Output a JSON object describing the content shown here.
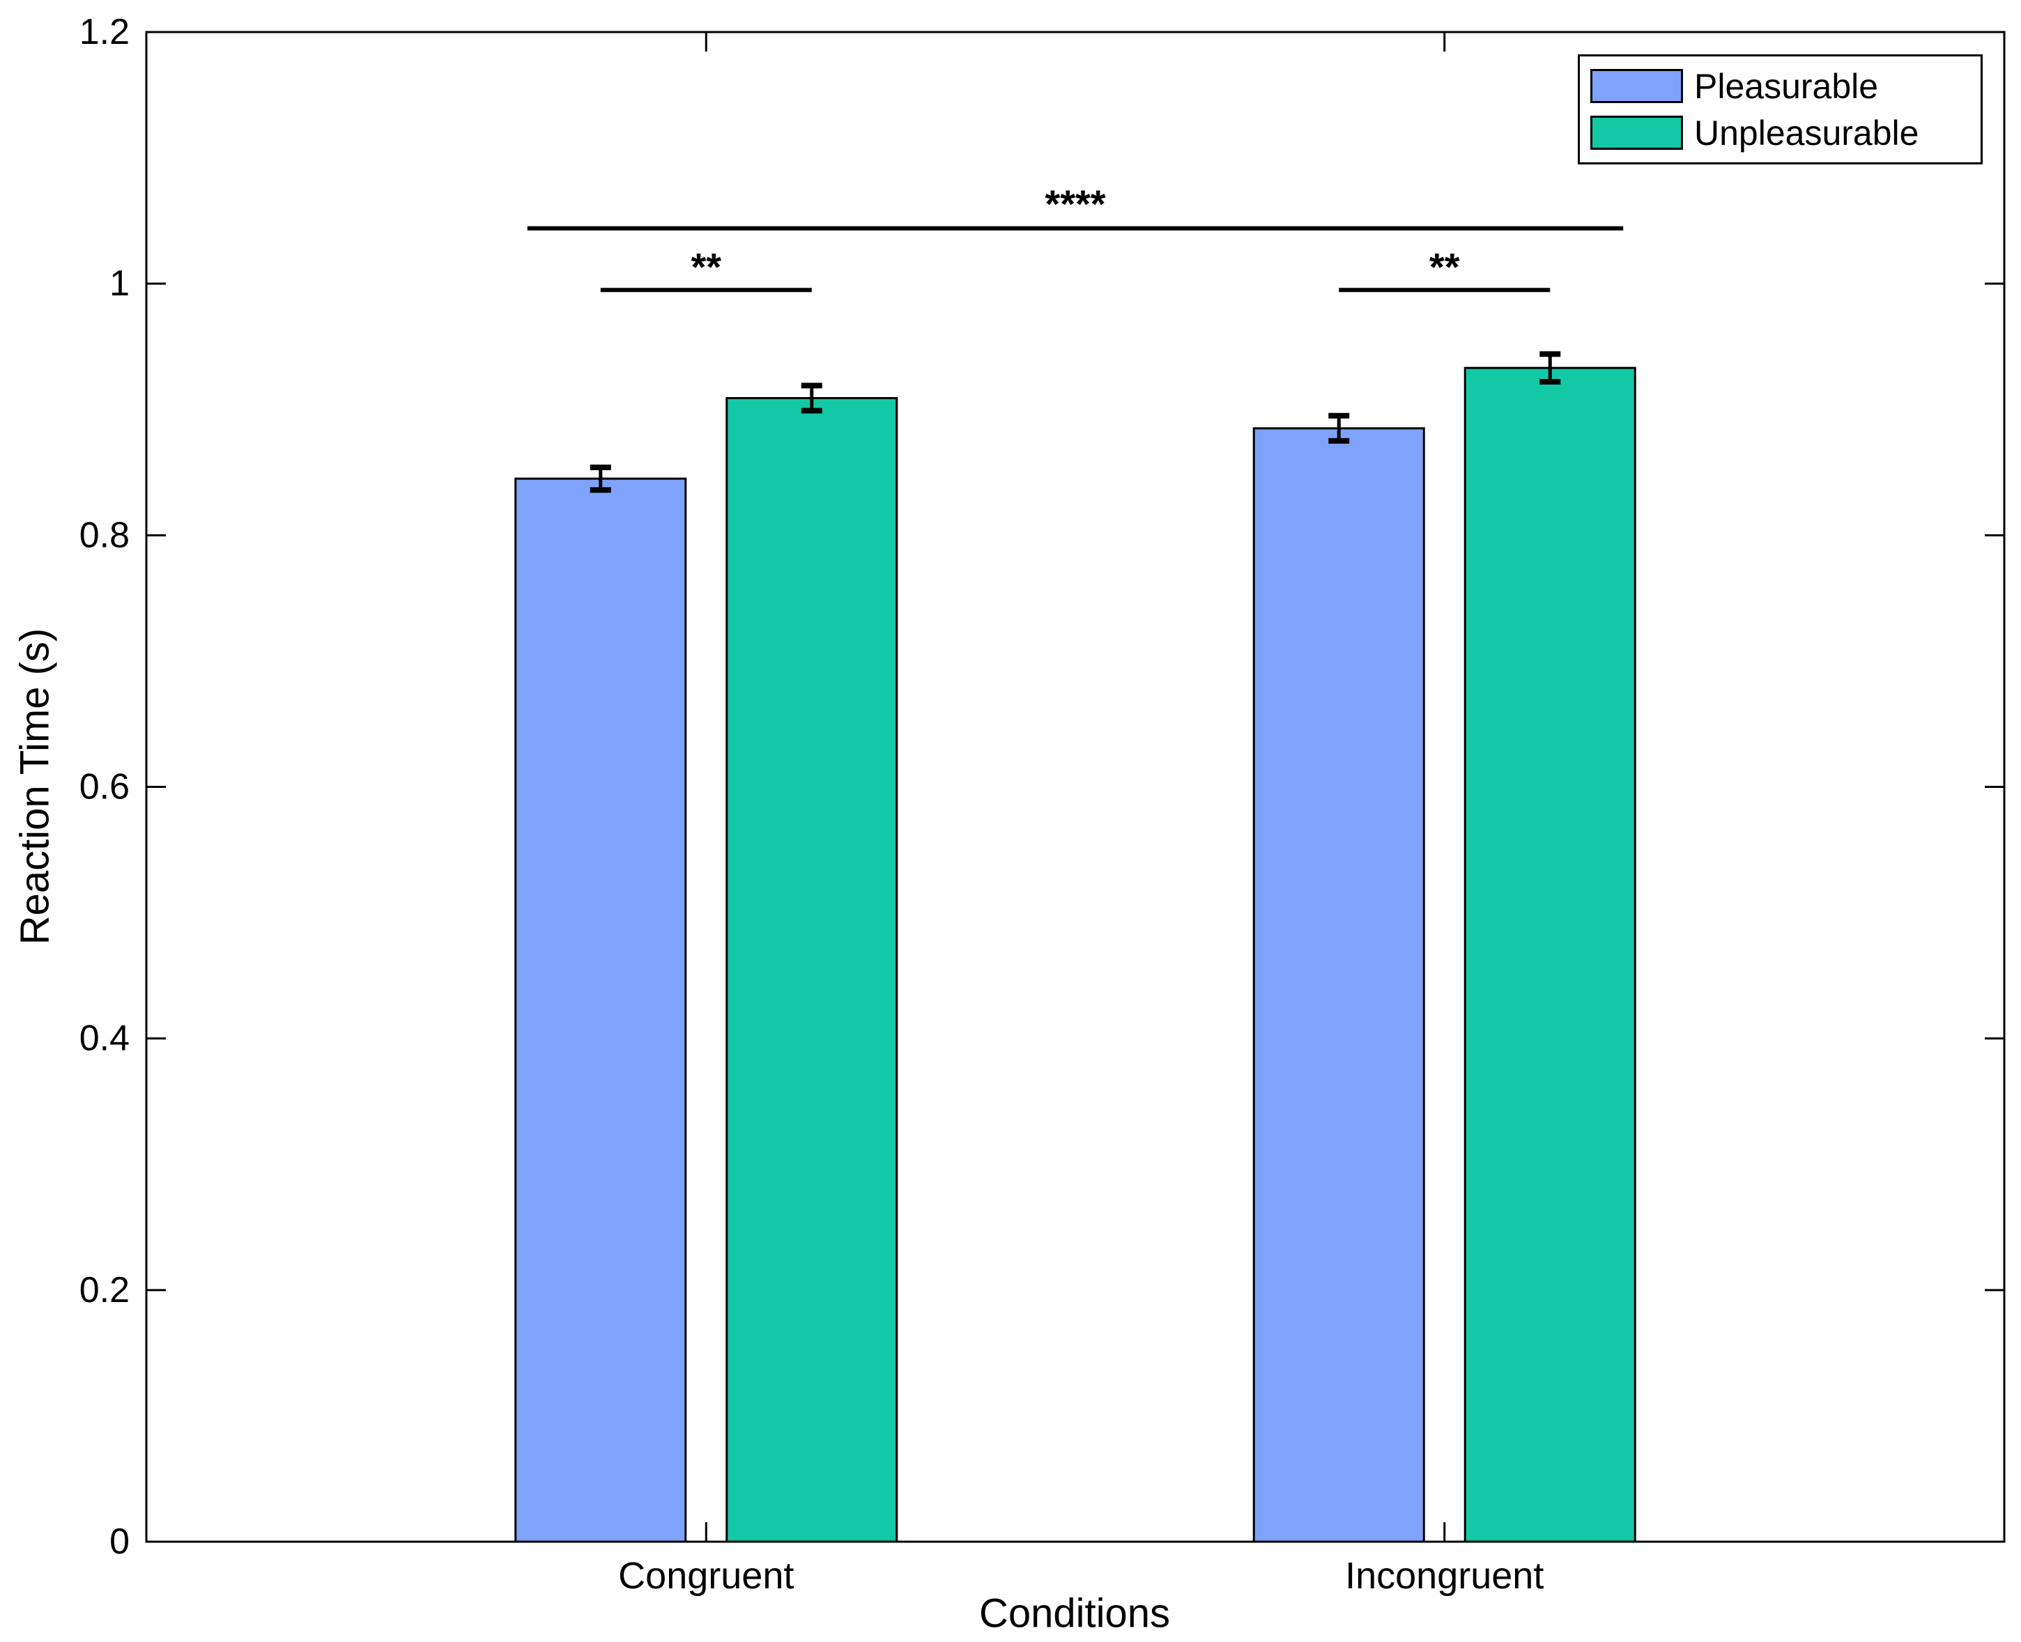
{
  "chart_data": {
    "type": "bar",
    "title": "",
    "xlabel": "Conditions",
    "ylabel": "Reaction Time (s)",
    "categories": [
      "Congruent",
      "Incongruent"
    ],
    "series": [
      {
        "name": "Pleasurable",
        "color": "#7FA3FA",
        "values": [
          0.845,
          0.885
        ],
        "errors": [
          0.009,
          0.01
        ]
      },
      {
        "name": "Unpleasurable",
        "color": "#13C9A5",
        "values": [
          0.909,
          0.933
        ],
        "errors": [
          0.01,
          0.011
        ]
      }
    ],
    "ylim": [
      0,
      1.2
    ],
    "yticks": [
      0,
      0.2,
      0.4,
      0.6,
      0.8,
      1,
      1.2
    ],
    "ytick_labels": [
      "0",
      "0.2",
      "0.4",
      "0.6",
      "0.8",
      "1",
      "1.2"
    ],
    "grid": false,
    "legend_position": "top-right",
    "axis_color": "#000000",
    "bar_edge_color": "#000000",
    "significance": [
      {
        "id": "congruent-pair",
        "label": "**",
        "scope": "within",
        "category": "Congruent",
        "series": [
          "Pleasurable",
          "Unpleasurable"
        ],
        "line_y": 0.995,
        "label_y": 1.019
      },
      {
        "id": "incongruent-pair",
        "label": "**",
        "scope": "within",
        "category": "Incongruent",
        "series": [
          "Pleasurable",
          "Unpleasurable"
        ],
        "line_y": 0.995,
        "label_y": 1.019
      },
      {
        "id": "across-conditions",
        "label": "****",
        "scope": "across",
        "from": {
          "category": "Congruent",
          "series": "Pleasurable"
        },
        "to": {
          "category": "Incongruent",
          "series": "Unpleasurable"
        },
        "line_y": 1.044,
        "label_y": 1.069
      }
    ]
  }
}
